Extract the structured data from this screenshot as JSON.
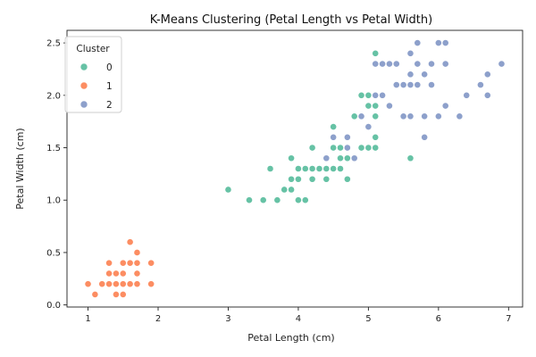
{
  "chart_data": {
    "type": "scatter",
    "title": "K-Means Clustering (Petal Length vs Petal Width)",
    "xlabel": "Petal Length (cm)",
    "ylabel": "Petal Width (cm)",
    "xlim": [
      0.7,
      7.2
    ],
    "ylim": [
      -0.02,
      2.62
    ],
    "x_ticks": [
      1,
      2,
      3,
      4,
      5,
      6,
      7
    ],
    "x_tick_labels": [
      "1",
      "2",
      "3",
      "4",
      "5",
      "6",
      "7"
    ],
    "y_ticks": [
      0.0,
      0.5,
      1.0,
      1.5,
      2.0,
      2.5
    ],
    "y_tick_labels": [
      "0.0",
      "0.5",
      "1.0",
      "1.5",
      "2.0",
      "2.5"
    ],
    "grid": false,
    "legend": {
      "title": "Cluster",
      "position": "top-left"
    },
    "series": [
      {
        "name": "0",
        "color": "#66c2a5",
        "points": [
          [
            3.0,
            1.1
          ],
          [
            3.3,
            1.0
          ],
          [
            3.5,
            1.0
          ],
          [
            3.6,
            1.3
          ],
          [
            3.7,
            1.0
          ],
          [
            3.8,
            1.1
          ],
          [
            3.9,
            1.1
          ],
          [
            3.9,
            1.2
          ],
          [
            3.9,
            1.4
          ],
          [
            4.0,
            1.0
          ],
          [
            4.0,
            1.2
          ],
          [
            4.0,
            1.3
          ],
          [
            4.1,
            1.0
          ],
          [
            4.1,
            1.3
          ],
          [
            4.2,
            1.2
          ],
          [
            4.2,
            1.3
          ],
          [
            4.2,
            1.5
          ],
          [
            4.3,
            1.3
          ],
          [
            4.4,
            1.2
          ],
          [
            4.4,
            1.3
          ],
          [
            4.5,
            1.3
          ],
          [
            4.5,
            1.5
          ],
          [
            4.5,
            1.7
          ],
          [
            4.6,
            1.3
          ],
          [
            4.6,
            1.4
          ],
          [
            4.6,
            1.5
          ],
          [
            4.7,
            1.2
          ],
          [
            4.7,
            1.4
          ],
          [
            4.7,
            1.5
          ],
          [
            4.8,
            1.8
          ],
          [
            4.9,
            1.5
          ],
          [
            4.9,
            2.0
          ],
          [
            5.0,
            1.5
          ],
          [
            5.0,
            1.9
          ],
          [
            5.0,
            2.0
          ],
          [
            5.1,
            1.5
          ],
          [
            5.1,
            1.6
          ],
          [
            5.1,
            1.8
          ],
          [
            5.1,
            1.9
          ],
          [
            5.1,
            2.0
          ],
          [
            5.1,
            2.4
          ],
          [
            5.6,
            1.4
          ]
        ]
      },
      {
        "name": "1",
        "color": "#fc8d62",
        "points": [
          [
            1.0,
            0.2
          ],
          [
            1.1,
            0.1
          ],
          [
            1.2,
            0.2
          ],
          [
            1.3,
            0.2
          ],
          [
            1.3,
            0.3
          ],
          [
            1.3,
            0.4
          ],
          [
            1.4,
            0.1
          ],
          [
            1.4,
            0.2
          ],
          [
            1.4,
            0.3
          ],
          [
            1.5,
            0.1
          ],
          [
            1.5,
            0.2
          ],
          [
            1.5,
            0.3
          ],
          [
            1.5,
            0.4
          ],
          [
            1.6,
            0.2
          ],
          [
            1.6,
            0.4
          ],
          [
            1.6,
            0.6
          ],
          [
            1.7,
            0.2
          ],
          [
            1.7,
            0.3
          ],
          [
            1.7,
            0.4
          ],
          [
            1.7,
            0.5
          ],
          [
            1.9,
            0.2
          ],
          [
            1.9,
            0.4
          ]
        ]
      },
      {
        "name": "2",
        "color": "#8da0cb",
        "points": [
          [
            4.4,
            1.4
          ],
          [
            4.5,
            1.6
          ],
          [
            4.7,
            1.5
          ],
          [
            4.7,
            1.6
          ],
          [
            4.8,
            1.4
          ],
          [
            4.9,
            1.8
          ],
          [
            5.0,
            1.7
          ],
          [
            5.1,
            2.0
          ],
          [
            5.1,
            2.3
          ],
          [
            5.2,
            2.0
          ],
          [
            5.2,
            2.3
          ],
          [
            5.3,
            1.9
          ],
          [
            5.3,
            2.3
          ],
          [
            5.4,
            2.1
          ],
          [
            5.4,
            2.3
          ],
          [
            5.5,
            1.8
          ],
          [
            5.5,
            2.1
          ],
          [
            5.6,
            1.8
          ],
          [
            5.6,
            2.1
          ],
          [
            5.6,
            2.2
          ],
          [
            5.6,
            2.4
          ],
          [
            5.7,
            2.1
          ],
          [
            5.7,
            2.3
          ],
          [
            5.7,
            2.5
          ],
          [
            5.8,
            1.6
          ],
          [
            5.8,
            1.8
          ],
          [
            5.8,
            2.2
          ],
          [
            5.9,
            2.1
          ],
          [
            5.9,
            2.3
          ],
          [
            6.0,
            1.8
          ],
          [
            6.0,
            2.5
          ],
          [
            6.1,
            1.9
          ],
          [
            6.1,
            2.3
          ],
          [
            6.1,
            2.5
          ],
          [
            6.3,
            1.8
          ],
          [
            6.4,
            2.0
          ],
          [
            6.6,
            2.1
          ],
          [
            6.7,
            2.0
          ],
          [
            6.7,
            2.2
          ],
          [
            6.9,
            2.3
          ]
        ]
      }
    ]
  }
}
